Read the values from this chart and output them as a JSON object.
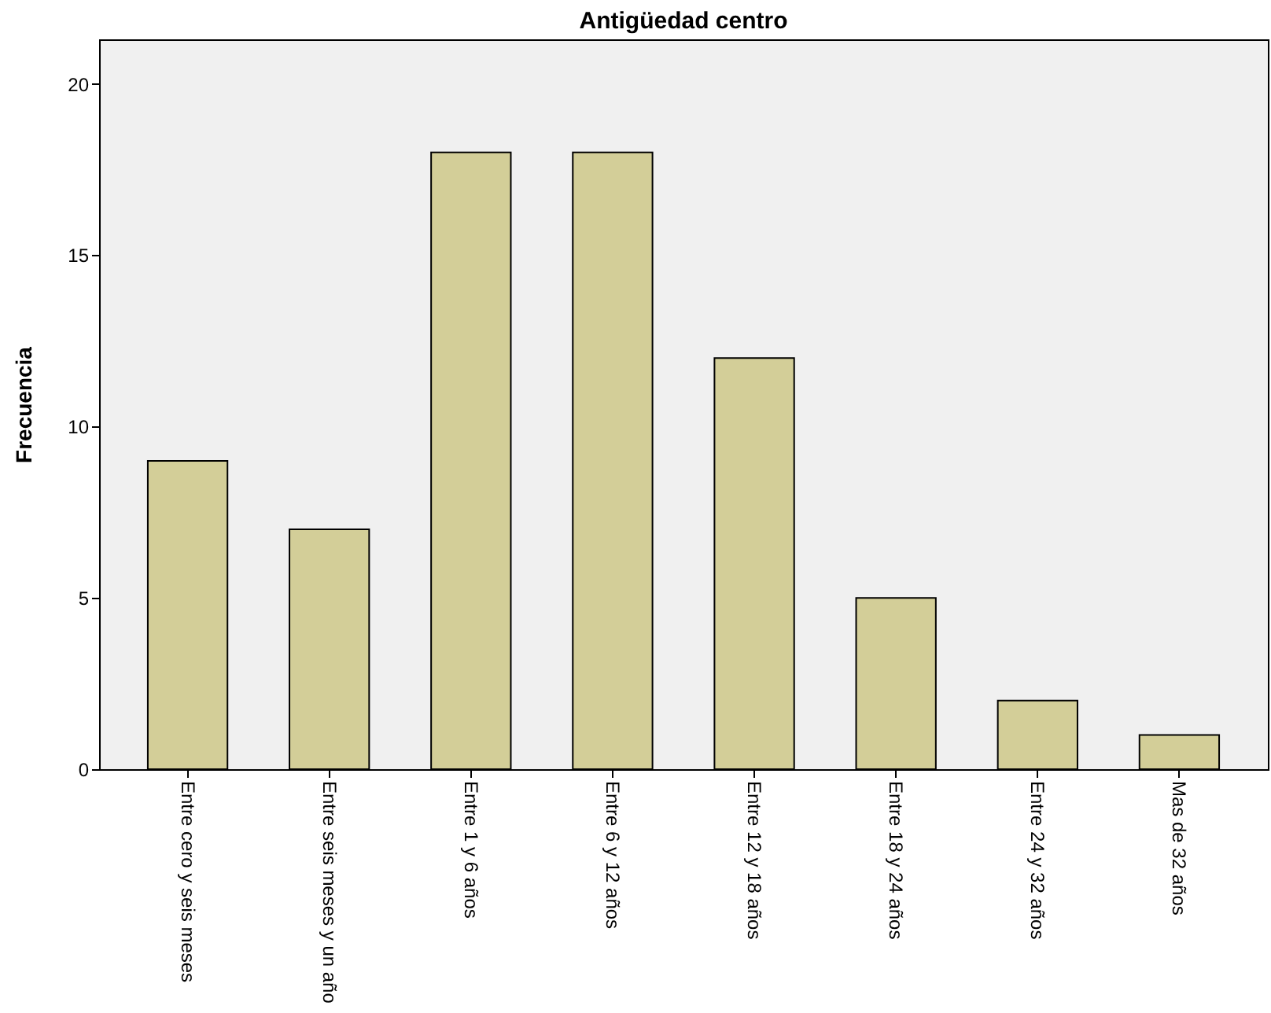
{
  "chart_data": {
    "type": "bar",
    "title": "Antigüedad centro",
    "ylabel": "Frecuencia",
    "categories": [
      "Entre cero y seis meses",
      "Entre seis meses y un año",
      "Entre 1 y 6 años",
      "Entre 6 y 12 años",
      "Entre 12 y 18 años",
      "Entre 18 y 24 años",
      "Entre 24 y 32 años",
      "Mas de 32 años"
    ],
    "values": [
      9,
      7,
      18,
      18,
      12,
      5,
      2,
      1
    ],
    "color": "#d3ce98",
    "ylim": [
      0,
      21.3
    ],
    "yticks": [
      0,
      5,
      10,
      15,
      20
    ],
    "grid": false
  }
}
